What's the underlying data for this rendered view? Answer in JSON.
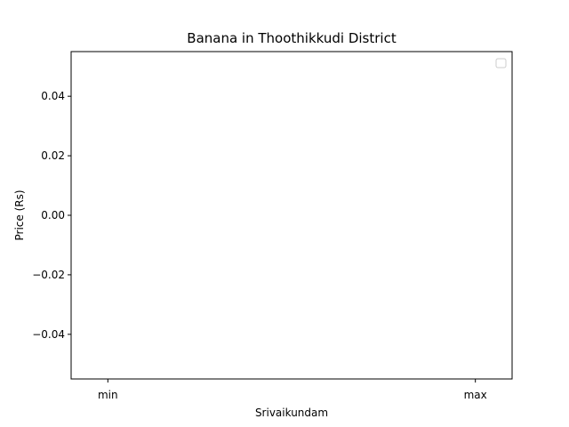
{
  "chart_data": {
    "type": "line",
    "title": "Banana in Thoothikkudi District",
    "xlabel": "Srivaikundam",
    "ylabel": "Price (Rs)",
    "categories": [
      "min",
      "max"
    ],
    "series": [],
    "ylim": [
      -0.055,
      0.055
    ],
    "yticks": [
      -0.04,
      -0.02,
      0.0,
      0.02,
      0.04
    ],
    "ytick_labels": [
      "−0.04",
      "−0.02",
      "0.00",
      "0.02",
      "0.04"
    ],
    "grid": false,
    "legend": "top-right",
    "legend_entries": []
  }
}
